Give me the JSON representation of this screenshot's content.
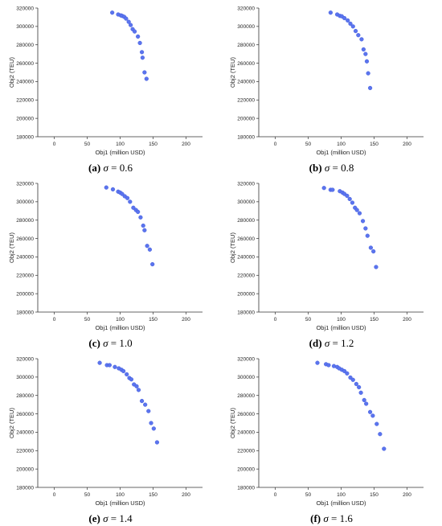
{
  "figure": {
    "point_color": "#5b74ee",
    "panel_layout": "3 rows x 2 columns"
  },
  "chart_data": [
    {
      "type": "scatter",
      "caption_tag": "(a)",
      "caption_symbol": "σ",
      "caption_value": "= 0.6",
      "xlabel": "Obj1 (million USD)",
      "ylabel": "Obj2 (TEU)",
      "xlim": [
        -25,
        225
      ],
      "ylim": [
        180000,
        320000
      ],
      "xticks": [
        "0",
        "50",
        "100",
        "150",
        "200"
      ],
      "yticks": [
        "180000",
        "200000",
        "220000",
        "240000",
        "260000",
        "280000",
        "300000",
        "320000"
      ],
      "grid": false,
      "legend": "none",
      "points": [
        [
          88,
          315000
        ],
        [
          97,
          313000
        ],
        [
          101,
          312000
        ],
        [
          103,
          311500
        ],
        [
          106,
          310500
        ],
        [
          109,
          308500
        ],
        [
          113,
          305000
        ],
        [
          116,
          301500
        ],
        [
          119,
          297000
        ],
        [
          122,
          294500
        ],
        [
          127,
          289000
        ],
        [
          130,
          282000
        ],
        [
          133,
          272000
        ],
        [
          134,
          266000
        ],
        [
          137,
          250000
        ],
        [
          140,
          243000
        ]
      ]
    },
    {
      "type": "scatter",
      "caption_tag": "(b)",
      "caption_symbol": "σ",
      "caption_value": "= 0.8",
      "xlabel": "Obj1 (million USD)",
      "ylabel": "Obj2 (TEU)",
      "xlim": [
        -25,
        225
      ],
      "ylim": [
        180000,
        320000
      ],
      "xticks": [
        "0",
        "50",
        "100",
        "150",
        "200"
      ],
      "yticks": [
        "180000",
        "200000",
        "220000",
        "240000",
        "260000",
        "280000",
        "300000",
        "320000"
      ],
      "grid": false,
      "legend": "none",
      "points": [
        [
          84,
          315000
        ],
        [
          94,
          313000
        ],
        [
          98,
          311500
        ],
        [
          101,
          311000
        ],
        [
          105,
          309000
        ],
        [
          110,
          306500
        ],
        [
          114,
          303000
        ],
        [
          118,
          300000
        ],
        [
          122,
          295000
        ],
        [
          126,
          290500
        ],
        [
          131,
          286000
        ],
        [
          134,
          275000
        ],
        [
          137,
          270000
        ],
        [
          139,
          262000
        ],
        [
          141,
          249000
        ],
        [
          144,
          233000
        ]
      ]
    },
    {
      "type": "scatter",
      "caption_tag": "(c)",
      "caption_symbol": "σ",
      "caption_value": "= 1.0",
      "xlabel": "Obj1 (million USD)",
      "ylabel": "Obj2 (TEU)",
      "xlim": [
        -25,
        225
      ],
      "ylim": [
        180000,
        320000
      ],
      "xticks": [
        "0",
        "50",
        "100",
        "150",
        "200"
      ],
      "yticks": [
        "180000",
        "200000",
        "220000",
        "240000",
        "260000",
        "280000",
        "300000",
        "320000"
      ],
      "grid": false,
      "legend": "none",
      "points": [
        [
          79,
          315500
        ],
        [
          89,
          313500
        ],
        [
          97,
          311000
        ],
        [
          100,
          310000
        ],
        [
          103,
          308500
        ],
        [
          107,
          306000
        ],
        [
          111,
          304000
        ],
        [
          115,
          300000
        ],
        [
          120,
          293500
        ],
        [
          124,
          291000
        ],
        [
          127,
          289000
        ],
        [
          131,
          283000
        ],
        [
          135,
          274000
        ],
        [
          137,
          269000
        ],
        [
          141,
          252000
        ],
        [
          145,
          248000
        ],
        [
          149,
          232000
        ]
      ]
    },
    {
      "type": "scatter",
      "caption_tag": "(d)",
      "caption_symbol": "σ",
      "caption_value": "= 1.2",
      "xlabel": "Obj1 (million USD)",
      "ylabel": "Obj2 (TEU)",
      "xlim": [
        -25,
        225
      ],
      "ylim": [
        180000,
        320000
      ],
      "xticks": [
        "0",
        "50",
        "100",
        "150",
        "200"
      ],
      "yticks": [
        "180000",
        "200000",
        "220000",
        "240000",
        "260000",
        "280000",
        "300000",
        "320000"
      ],
      "grid": false,
      "legend": "none",
      "points": [
        [
          74,
          315000
        ],
        [
          84,
          313000
        ],
        [
          87,
          313000
        ],
        [
          98,
          311500
        ],
        [
          102,
          310000
        ],
        [
          105,
          308500
        ],
        [
          109,
          306500
        ],
        [
          113,
          303000
        ],
        [
          117,
          299000
        ],
        [
          121,
          293500
        ],
        [
          124,
          291000
        ],
        [
          128,
          287500
        ],
        [
          133,
          279000
        ],
        [
          137,
          271000
        ],
        [
          140,
          263000
        ],
        [
          145,
          250000
        ],
        [
          149,
          246000
        ],
        [
          153,
          229000
        ]
      ]
    },
    {
      "type": "scatter",
      "caption_tag": "(e)",
      "caption_symbol": "σ",
      "caption_value": "= 1.4",
      "xlabel": "Obj1 (million USD)",
      "ylabel": "Obj2 (TEU)",
      "xlim": [
        -25,
        225
      ],
      "ylim": [
        180000,
        320000
      ],
      "xticks": [
        "0",
        "50",
        "100",
        "150",
        "200"
      ],
      "yticks": [
        "180000",
        "200000",
        "220000",
        "240000",
        "260000",
        "280000",
        "300000",
        "320000"
      ],
      "grid": false,
      "legend": "none",
      "points": [
        [
          69,
          315500
        ],
        [
          80,
          313000
        ],
        [
          84,
          313000
        ],
        [
          92,
          311000
        ],
        [
          98,
          309500
        ],
        [
          102,
          308000
        ],
        [
          105,
          306500
        ],
        [
          110,
          303000
        ],
        [
          114,
          299000
        ],
        [
          117,
          297500
        ],
        [
          121,
          292000
        ],
        [
          125,
          290000
        ],
        [
          128,
          286000
        ],
        [
          133,
          274000
        ],
        [
          138,
          270000
        ],
        [
          143,
          263000
        ],
        [
          147,
          250000
        ],
        [
          151,
          244000
        ],
        [
          156,
          229000
        ]
      ]
    },
    {
      "type": "scatter",
      "caption_tag": "(f)",
      "caption_symbol": "σ",
      "caption_value": "= 1.6",
      "xlabel": "Obj1 (million USD)",
      "ylabel": "Obj2 (TEU)",
      "xlim": [
        -25,
        225
      ],
      "ylim": [
        180000,
        320000
      ],
      "xticks": [
        "0",
        "50",
        "100",
        "150",
        "200"
      ],
      "yticks": [
        "180000",
        "200000",
        "220000",
        "240000",
        "260000",
        "280000",
        "300000",
        "320000"
      ],
      "grid": false,
      "legend": "none",
      "points": [
        [
          64,
          315500
        ],
        [
          77,
          314000
        ],
        [
          81,
          313000
        ],
        [
          89,
          312000
        ],
        [
          94,
          311000
        ],
        [
          97,
          309500
        ],
        [
          101,
          308000
        ],
        [
          105,
          306500
        ],
        [
          109,
          304000
        ],
        [
          114,
          299500
        ],
        [
          118,
          297000
        ],
        [
          123,
          292500
        ],
        [
          127,
          289000
        ],
        [
          130,
          283000
        ],
        [
          135,
          275000
        ],
        [
          138,
          271000
        ],
        [
          144,
          262000
        ],
        [
          148,
          258000
        ],
        [
          154,
          249000
        ],
        [
          159,
          238000
        ],
        [
          165,
          222000
        ]
      ]
    }
  ]
}
